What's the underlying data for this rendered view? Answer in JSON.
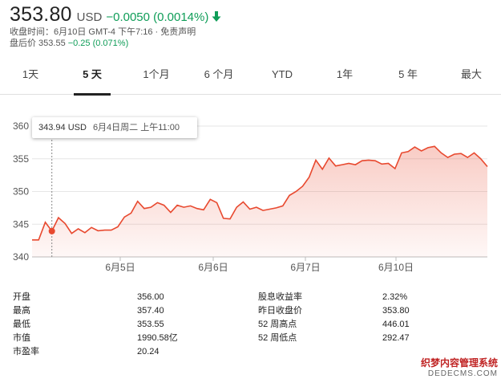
{
  "quote": {
    "price": "353.80",
    "currency": "USD",
    "change": "−0.0050 (0.0014%)",
    "change_color": "#0f9d58",
    "close_time": "收盘时间：6月10日 GMT-4 下午7:16 · 免责声明",
    "after_hours_label": "盘后价 353.55",
    "after_hours_change": "−0.25 (0.071%)"
  },
  "tabs": [
    {
      "label": "1天"
    },
    {
      "label": "5 天",
      "active": true
    },
    {
      "label": "1个月"
    },
    {
      "label": "6 个月"
    },
    {
      "label": "YTD"
    },
    {
      "label": "1年"
    },
    {
      "label": "5 年"
    },
    {
      "label": "最大"
    }
  ],
  "tooltip": {
    "price": "343.94 USD",
    "date": "6月4日周二 上午11:00"
  },
  "chart_data": {
    "type": "area",
    "line_color": "#e8492f",
    "ylim": [
      340,
      360
    ],
    "yticks": [
      "360",
      "355",
      "350",
      "345",
      "340"
    ],
    "xticks": [
      "6月5日",
      "6月6日",
      "6月7日",
      "6月10日"
    ],
    "y": [
      342.6,
      342.6,
      345.3,
      343.94,
      346.0,
      345.1,
      343.6,
      344.3,
      343.7,
      344.5,
      344.0,
      344.1,
      344.1,
      344.6,
      346.1,
      346.7,
      348.5,
      347.4,
      347.6,
      348.3,
      347.9,
      346.8,
      347.9,
      347.6,
      347.8,
      347.4,
      347.2,
      348.8,
      348.3,
      345.9,
      345.8,
      347.6,
      348.4,
      347.3,
      347.6,
      347.1,
      347.3,
      347.5,
      347.8,
      349.4,
      350.0,
      350.8,
      352.2,
      354.8,
      353.4,
      355.1,
      353.9,
      354.1,
      354.3,
      354.1,
      354.7,
      354.8,
      354.7,
      354.2,
      354.3,
      353.5,
      355.9,
      356.1,
      356.8,
      356.2,
      356.7,
      356.9,
      355.9,
      355.2,
      355.7,
      355.8,
      355.2,
      355.9,
      355.0,
      353.8
    ],
    "hover_index": 3
  },
  "stats_left": [
    {
      "label": "开盘",
      "value": "356.00"
    },
    {
      "label": "最高",
      "value": "357.40"
    },
    {
      "label": "最低",
      "value": "353.55"
    },
    {
      "label": "市值",
      "value": "1990.58亿"
    },
    {
      "label": "市盈率",
      "value": "20.24"
    }
  ],
  "stats_right": [
    {
      "label": "股息收益率",
      "value": "2.32%"
    },
    {
      "label": "昨日收盘价",
      "value": "353.80"
    },
    {
      "label": "52 周高点",
      "value": "446.01"
    },
    {
      "label": "52 周低点",
      "value": "292.47"
    }
  ],
  "watermark": {
    "line1": "织梦内容管理系统",
    "line2": "DEDECMS.COM"
  }
}
